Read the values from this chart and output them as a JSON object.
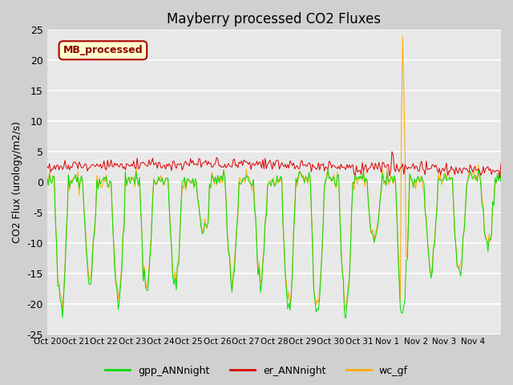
{
  "title": "Mayberry processed CO2 Fluxes",
  "ylabel": "CO2 Flux (urology/m2/s)",
  "ylim": [
    -25,
    25
  ],
  "yticks": [
    -25,
    -20,
    -15,
    -10,
    -5,
    0,
    5,
    10,
    15,
    20,
    25
  ],
  "fig_bg": "#d0d0d0",
  "axes_bg": "#e8e8e8",
  "mb_label": "MB_processed",
  "mb_text_color": "#8b0000",
  "mb_box_face": "#ffffcc",
  "mb_box_edge": "#aa0000",
  "colors": {
    "gpp_ANNnight": "#00dd00",
    "er_ANNnight": "#dd0000",
    "wc_gf": "#ffaa00"
  },
  "tick_labels": [
    "Oct 20",
    "Oct 21",
    "Oct 22",
    "Oct 23",
    "Oct 24",
    "Oct 25",
    "Oct 26",
    "Oct 27",
    "Oct 28",
    "Oct 29",
    "Oct 30",
    "Oct 31",
    "Nov 1",
    "Nov 2",
    "Nov 3",
    "Nov 4",
    ""
  ],
  "n_days": 16
}
